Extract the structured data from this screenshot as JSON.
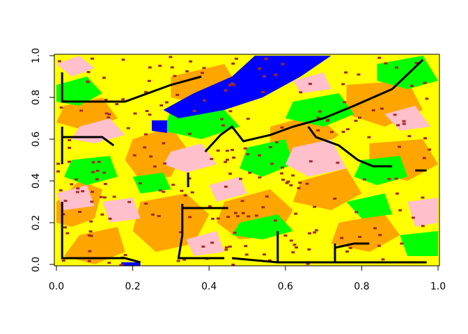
{
  "chart_data": {
    "type": "heatmap",
    "title": "",
    "xlabel": "",
    "ylabel": "",
    "xlim": [
      0,
      1
    ],
    "ylim": [
      0,
      1
    ],
    "x_ticks": [
      {
        "value": 0.0,
        "label": "0.0"
      },
      {
        "value": 0.2,
        "label": "0.2"
      },
      {
        "value": 0.4,
        "label": "0.4"
      },
      {
        "value": 0.6,
        "label": "0.6"
      },
      {
        "value": 0.8,
        "label": "0.8"
      },
      {
        "value": 1.0,
        "label": "1.0"
      }
    ],
    "y_ticks": [
      {
        "value": 0.0,
        "label": "0.0"
      },
      {
        "value": 0.2,
        "label": "0.2"
      },
      {
        "value": 0.4,
        "label": "0.4"
      },
      {
        "value": 0.6,
        "label": "0.6"
      },
      {
        "value": 0.8,
        "label": "0.8"
      },
      {
        "value": 1.0,
        "label": "1.0"
      }
    ],
    "background_color": "#FFFF00",
    "classes": [
      {
        "color": "#FFFF00"
      },
      {
        "color": "#FFA500"
      },
      {
        "color": "#00FF00"
      },
      {
        "color": "#FFC0CB"
      },
      {
        "color": "#0000FF"
      },
      {
        "color": "#A52A2A"
      }
    ],
    "regions": [
      {
        "color": "#FFA500",
        "points": [
          [
            0.0,
            0.3
          ],
          [
            0.06,
            0.4
          ],
          [
            0.12,
            0.36
          ],
          [
            0.1,
            0.22
          ],
          [
            0.04,
            0.18
          ],
          [
            0.0,
            0.2
          ]
        ]
      },
      {
        "color": "#FFA500",
        "points": [
          [
            0.2,
            0.6
          ],
          [
            0.3,
            0.66
          ],
          [
            0.34,
            0.56
          ],
          [
            0.3,
            0.42
          ],
          [
            0.22,
            0.4
          ],
          [
            0.18,
            0.5
          ]
        ]
      },
      {
        "color": "#FFA500",
        "points": [
          [
            0.22,
            0.3
          ],
          [
            0.34,
            0.34
          ],
          [
            0.4,
            0.24
          ],
          [
            0.36,
            0.1
          ],
          [
            0.26,
            0.06
          ],
          [
            0.2,
            0.16
          ]
        ]
      },
      {
        "color": "#FFA500",
        "points": [
          [
            0.44,
            0.3
          ],
          [
            0.56,
            0.36
          ],
          [
            0.62,
            0.26
          ],
          [
            0.58,
            0.14
          ],
          [
            0.48,
            0.12
          ],
          [
            0.42,
            0.2
          ]
        ]
      },
      {
        "color": "#FFA500",
        "points": [
          [
            0.56,
            0.66
          ],
          [
            0.68,
            0.72
          ],
          [
            0.74,
            0.62
          ],
          [
            0.66,
            0.52
          ],
          [
            0.56,
            0.54
          ]
        ]
      },
      {
        "color": "#FFA500",
        "points": [
          [
            0.76,
            0.86
          ],
          [
            0.92,
            0.88
          ],
          [
            0.96,
            0.74
          ],
          [
            0.86,
            0.66
          ],
          [
            0.76,
            0.72
          ]
        ]
      },
      {
        "color": "#FFA500",
        "points": [
          [
            0.82,
            0.58
          ],
          [
            0.96,
            0.6
          ],
          [
            1.0,
            0.48
          ],
          [
            0.92,
            0.4
          ],
          [
            0.82,
            0.44
          ]
        ]
      },
      {
        "color": "#FFA500",
        "points": [
          [
            0.64,
            0.4
          ],
          [
            0.76,
            0.46
          ],
          [
            0.8,
            0.34
          ],
          [
            0.72,
            0.26
          ],
          [
            0.62,
            0.3
          ]
        ]
      },
      {
        "color": "#FFA500",
        "points": [
          [
            0.3,
            0.9
          ],
          [
            0.44,
            0.96
          ],
          [
            0.48,
            0.84
          ],
          [
            0.4,
            0.76
          ],
          [
            0.3,
            0.8
          ]
        ]
      },
      {
        "color": "#FFA500",
        "points": [
          [
            0.02,
            0.76
          ],
          [
            0.12,
            0.8
          ],
          [
            0.16,
            0.7
          ],
          [
            0.08,
            0.64
          ],
          [
            0.0,
            0.68
          ]
        ]
      },
      {
        "color": "#FFA500",
        "points": [
          [
            0.74,
            0.2
          ],
          [
            0.86,
            0.24
          ],
          [
            0.9,
            0.14
          ],
          [
            0.82,
            0.06
          ],
          [
            0.72,
            0.1
          ]
        ]
      },
      {
        "color": "#FFA500",
        "points": [
          [
            0.06,
            0.14
          ],
          [
            0.16,
            0.18
          ],
          [
            0.18,
            0.06
          ],
          [
            0.1,
            0.0
          ],
          [
            0.02,
            0.04
          ]
        ]
      },
      {
        "color": "#00FF00",
        "points": [
          [
            0.0,
            0.86
          ],
          [
            0.08,
            0.9
          ],
          [
            0.12,
            0.82
          ],
          [
            0.06,
            0.76
          ],
          [
            0.0,
            0.78
          ]
        ]
      },
      {
        "color": "#00FF00",
        "points": [
          [
            0.04,
            0.5
          ],
          [
            0.14,
            0.52
          ],
          [
            0.16,
            0.42
          ],
          [
            0.08,
            0.38
          ],
          [
            0.02,
            0.42
          ]
        ]
      },
      {
        "color": "#00FF00",
        "points": [
          [
            0.3,
            0.74
          ],
          [
            0.42,
            0.78
          ],
          [
            0.48,
            0.66
          ],
          [
            0.38,
            0.6
          ],
          [
            0.28,
            0.64
          ]
        ]
      },
      {
        "color": "#00FF00",
        "points": [
          [
            0.5,
            0.56
          ],
          [
            0.6,
            0.6
          ],
          [
            0.62,
            0.48
          ],
          [
            0.54,
            0.42
          ],
          [
            0.48,
            0.46
          ]
        ]
      },
      {
        "color": "#00FF00",
        "points": [
          [
            0.62,
            0.78
          ],
          [
            0.74,
            0.82
          ],
          [
            0.78,
            0.72
          ],
          [
            0.7,
            0.66
          ],
          [
            0.6,
            0.7
          ]
        ]
      },
      {
        "color": "#00FF00",
        "points": [
          [
            0.84,
            0.96
          ],
          [
            0.96,
            1.0
          ],
          [
            1.0,
            0.88
          ],
          [
            0.92,
            0.84
          ],
          [
            0.84,
            0.88
          ]
        ]
      },
      {
        "color": "#00FF00",
        "points": [
          [
            0.8,
            0.5
          ],
          [
            0.9,
            0.52
          ],
          [
            0.92,
            0.42
          ],
          [
            0.84,
            0.38
          ],
          [
            0.78,
            0.42
          ]
        ]
      },
      {
        "color": "#00FF00",
        "points": [
          [
            0.48,
            0.2
          ],
          [
            0.58,
            0.24
          ],
          [
            0.62,
            0.16
          ],
          [
            0.54,
            0.12
          ],
          [
            0.46,
            0.14
          ]
        ]
      },
      {
        "color": "#00FF00",
        "points": [
          [
            0.76,
            0.3
          ],
          [
            0.86,
            0.34
          ],
          [
            0.88,
            0.24
          ],
          [
            0.8,
            0.22
          ]
        ]
      },
      {
        "color": "#00FF00",
        "points": [
          [
            0.9,
            0.14
          ],
          [
            1.0,
            0.16
          ],
          [
            1.0,
            0.04
          ],
          [
            0.92,
            0.04
          ]
        ]
      },
      {
        "color": "#00FF00",
        "points": [
          [
            0.2,
            0.42
          ],
          [
            0.28,
            0.44
          ],
          [
            0.3,
            0.36
          ],
          [
            0.22,
            0.34
          ]
        ]
      },
      {
        "color": "#FFC0CB",
        "points": [
          [
            0.06,
            0.66
          ],
          [
            0.14,
            0.7
          ],
          [
            0.18,
            0.62
          ],
          [
            0.1,
            0.58
          ],
          [
            0.04,
            0.6
          ]
        ]
      },
      {
        "color": "#FFC0CB",
        "points": [
          [
            0.62,
            0.56
          ],
          [
            0.72,
            0.6
          ],
          [
            0.76,
            0.46
          ],
          [
            0.66,
            0.42
          ],
          [
            0.6,
            0.48
          ]
        ]
      },
      {
        "color": "#FFC0CB",
        "points": [
          [
            0.3,
            0.54
          ],
          [
            0.38,
            0.58
          ],
          [
            0.42,
            0.48
          ],
          [
            0.34,
            0.44
          ],
          [
            0.28,
            0.48
          ]
        ]
      },
      {
        "color": "#FFC0CB",
        "points": [
          [
            0.0,
            0.34
          ],
          [
            0.08,
            0.38
          ],
          [
            0.1,
            0.28
          ],
          [
            0.02,
            0.26
          ]
        ]
      },
      {
        "color": "#FFC0CB",
        "points": [
          [
            0.12,
            0.3
          ],
          [
            0.2,
            0.32
          ],
          [
            0.22,
            0.22
          ],
          [
            0.14,
            0.2
          ]
        ]
      },
      {
        "color": "#FFC0CB",
        "points": [
          [
            0.34,
            0.12
          ],
          [
            0.42,
            0.16
          ],
          [
            0.44,
            0.06
          ],
          [
            0.36,
            0.04
          ]
        ]
      },
      {
        "color": "#FFC0CB",
        "points": [
          [
            0.92,
            0.3
          ],
          [
            1.0,
            0.32
          ],
          [
            1.0,
            0.2
          ],
          [
            0.94,
            0.18
          ]
        ]
      },
      {
        "color": "#FFC0CB",
        "points": [
          [
            0.86,
            0.72
          ],
          [
            0.94,
            0.76
          ],
          [
            0.98,
            0.66
          ],
          [
            0.9,
            0.64
          ]
        ]
      },
      {
        "color": "#FFC0CB",
        "points": [
          [
            0.62,
            0.88
          ],
          [
            0.7,
            0.92
          ],
          [
            0.72,
            0.84
          ],
          [
            0.64,
            0.82
          ]
        ]
      },
      {
        "color": "#FFC0CB",
        "points": [
          [
            0.4,
            0.38
          ],
          [
            0.48,
            0.42
          ],
          [
            0.5,
            0.34
          ],
          [
            0.42,
            0.3
          ]
        ]
      },
      {
        "color": "#FFC0CB",
        "points": [
          [
            0.0,
            0.96
          ],
          [
            0.06,
            1.0
          ],
          [
            0.1,
            0.94
          ],
          [
            0.04,
            0.9
          ]
        ]
      },
      {
        "color": "#0000FF",
        "points": [
          [
            0.52,
            1.0
          ],
          [
            0.72,
            1.0
          ],
          [
            0.64,
            0.9
          ],
          [
            0.54,
            0.8
          ],
          [
            0.44,
            0.74
          ],
          [
            0.32,
            0.7
          ],
          [
            0.28,
            0.74
          ],
          [
            0.36,
            0.82
          ],
          [
            0.46,
            0.9
          ]
        ]
      },
      {
        "color": "#0000FF",
        "points": [
          [
            0.25,
            0.69
          ],
          [
            0.29,
            0.69
          ],
          [
            0.29,
            0.63
          ],
          [
            0.25,
            0.64
          ]
        ]
      },
      {
        "color": "#0000FF",
        "points": [
          [
            0.17,
            0.01
          ],
          [
            0.22,
            0.01
          ],
          [
            0.22,
            -0.01
          ],
          [
            0.17,
            -0.01
          ]
        ]
      }
    ],
    "speckles": {
      "color": "#A52A2A",
      "count": 240,
      "seed": 7
    },
    "paths": [
      {
        "color": "#000000",
        "points": [
          [
            0.015,
            0.92
          ],
          [
            0.015,
            0.78
          ],
          [
            0.18,
            0.78
          ],
          [
            0.3,
            0.86
          ],
          [
            0.38,
            0.9
          ]
        ]
      },
      {
        "color": "#000000",
        "points": [
          [
            0.015,
            0.66
          ],
          [
            0.015,
            0.48
          ]
        ]
      },
      {
        "color": "#000000",
        "points": [
          [
            0.015,
            0.61
          ],
          [
            0.12,
            0.61
          ],
          [
            0.15,
            0.57
          ]
        ]
      },
      {
        "color": "#000000",
        "points": [
          [
            0.015,
            0.3
          ],
          [
            0.015,
            0.03
          ],
          [
            0.18,
            0.03
          ],
          [
            0.22,
            0.01
          ]
        ]
      },
      {
        "color": "#000000",
        "points": [
          [
            0.345,
            0.44
          ],
          [
            0.345,
            0.37
          ]
        ]
      },
      {
        "color": "#000000",
        "points": [
          [
            0.33,
            0.29
          ],
          [
            0.33,
            0.23
          ],
          [
            0.33,
            0.14
          ],
          [
            0.32,
            0.03
          ],
          [
            0.44,
            0.03
          ]
        ]
      },
      {
        "color": "#000000",
        "points": [
          [
            0.33,
            0.27
          ],
          [
            0.45,
            0.27
          ]
        ]
      },
      {
        "color": "#000000",
        "points": [
          [
            0.39,
            0.54
          ],
          [
            0.43,
            0.62
          ],
          [
            0.46,
            0.66
          ],
          [
            0.49,
            0.59
          ],
          [
            0.56,
            0.62
          ],
          [
            0.62,
            0.66
          ],
          [
            0.7,
            0.7
          ],
          [
            0.78,
            0.76
          ],
          [
            0.88,
            0.84
          ],
          [
            0.96,
            0.98
          ]
        ]
      },
      {
        "color": "#000000",
        "points": [
          [
            0.66,
            0.66
          ],
          [
            0.68,
            0.61
          ],
          [
            0.74,
            0.57
          ],
          [
            0.79,
            0.5
          ],
          [
            0.83,
            0.47
          ],
          [
            0.88,
            0.47
          ]
        ]
      },
      {
        "color": "#000000",
        "points": [
          [
            0.46,
            0.03
          ],
          [
            0.58,
            0.01
          ],
          [
            0.97,
            0.01
          ]
        ]
      },
      {
        "color": "#000000",
        "points": [
          [
            0.58,
            0.16
          ],
          [
            0.58,
            0.01
          ]
        ]
      },
      {
        "color": "#000000",
        "points": [
          [
            0.73,
            0.1
          ],
          [
            0.73,
            0.01
          ]
        ]
      },
      {
        "color": "#000000",
        "points": [
          [
            0.73,
            0.08
          ],
          [
            0.78,
            0.1
          ],
          [
            0.82,
            0.1
          ]
        ]
      },
      {
        "color": "#000000",
        "points": [
          [
            0.94,
            0.45
          ],
          [
            0.97,
            0.45
          ]
        ]
      }
    ]
  }
}
